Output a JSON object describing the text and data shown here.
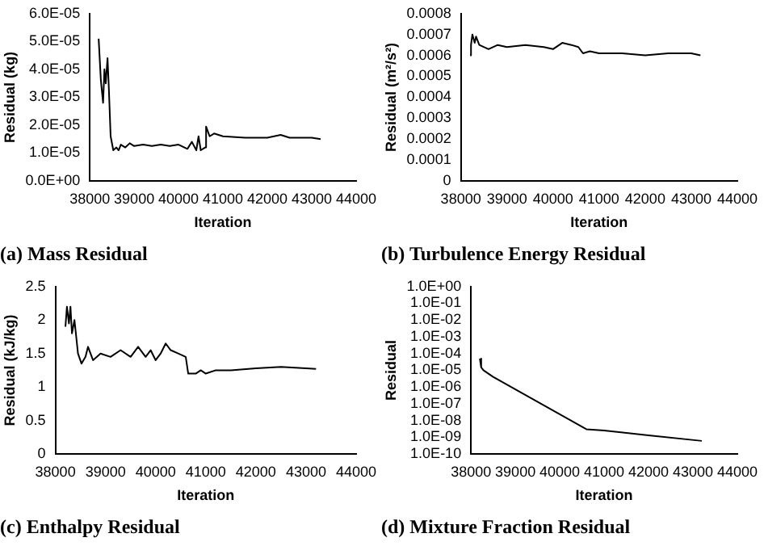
{
  "chart_data": [
    {
      "type": "line",
      "title": "(a) Mass Residual",
      "xlabel": "Iteration",
      "ylabel": "Residual (kg)",
      "xlim": [
        38000,
        44000
      ],
      "xticks": [
        38000,
        39000,
        40000,
        41000,
        42000,
        43000,
        44000
      ],
      "ylim": [
        0,
        6e-05
      ],
      "yticks": [
        {
          "value": 0,
          "label": "0.0E+00"
        },
        {
          "value": 1e-05,
          "label": "1.0E-05"
        },
        {
          "value": 2e-05,
          "label": "2.0E-05"
        },
        {
          "value": 3e-05,
          "label": "3.0E-05"
        },
        {
          "value": 4e-05,
          "label": "4.0E-05"
        },
        {
          "value": 5e-05,
          "label": "5.0E-05"
        },
        {
          "value": 6e-05,
          "label": "6.0E-05"
        }
      ],
      "series": [
        {
          "color": "#000000",
          "x": [
            38200,
            38250,
            38300,
            38330,
            38360,
            38400,
            38430,
            38470,
            38530,
            38600,
            38650,
            38700,
            38800,
            38900,
            39000,
            39200,
            39400,
            39600,
            39800,
            40000,
            40200,
            40300,
            40400,
            40450,
            40500,
            40600,
            40620,
            40700,
            40800,
            41000,
            41500,
            42000,
            42300,
            42500,
            43000,
            43200
          ],
          "values": [
            5.1e-05,
            3.6e-05,
            2.8e-05,
            4e-05,
            3.5e-05,
            4.4e-05,
            3.3e-05,
            1.6e-05,
            1.1e-05,
            1.2e-05,
            1.1e-05,
            1.3e-05,
            1.2e-05,
            1.35e-05,
            1.25e-05,
            1.3e-05,
            1.25e-05,
            1.3e-05,
            1.25e-05,
            1.3e-05,
            1.15e-05,
            1.4e-05,
            1.1e-05,
            1.6e-05,
            1.1e-05,
            1.2e-05,
            1.95e-05,
            1.6e-05,
            1.7e-05,
            1.6e-05,
            1.55e-05,
            1.55e-05,
            1.65e-05,
            1.55e-05,
            1.55e-05,
            1.5e-05
          ]
        }
      ]
    },
    {
      "type": "line",
      "title": "(b) Turbulence Energy Residual",
      "xlabel": "Iteration",
      "ylabel": "Residual (m²/s²)",
      "xlim": [
        38000,
        44000
      ],
      "xticks": [
        38000,
        39000,
        40000,
        41000,
        42000,
        43000,
        44000
      ],
      "ylim": [
        0,
        0.0008
      ],
      "yticks": [
        0,
        0.0001,
        0.0002,
        0.0003,
        0.0004,
        0.0005,
        0.0006,
        0.0007,
        0.0008
      ],
      "series": [
        {
          "color": "#000000",
          "x": [
            38200,
            38220,
            38250,
            38300,
            38330,
            38400,
            38600,
            38800,
            39000,
            39400,
            39800,
            40000,
            40200,
            40400,
            40550,
            40650,
            40800,
            41000,
            41500,
            42000,
            42500,
            43000,
            43200
          ],
          "values": [
            0.0006,
            0.00065,
            0.0007,
            0.00066,
            0.00069,
            0.00065,
            0.00063,
            0.00065,
            0.00064,
            0.00065,
            0.00064,
            0.00063,
            0.00066,
            0.00065,
            0.00064,
            0.00061,
            0.00062,
            0.00061,
            0.00061,
            0.0006,
            0.00061,
            0.00061,
            0.0006
          ]
        }
      ]
    },
    {
      "type": "line",
      "title": "(c) Enthalpy Residual",
      "xlabel": "Iteration",
      "ylabel": "Residual (kJ/kg)",
      "xlim": [
        38000,
        44000
      ],
      "xticks": [
        38000,
        39000,
        40000,
        41000,
        42000,
        43000,
        44000
      ],
      "ylim": [
        0,
        2.5
      ],
      "yticks": [
        0,
        0.5,
        1,
        1.5,
        2,
        2.5
      ],
      "series": [
        {
          "color": "#000000",
          "x": [
            38200,
            38230,
            38270,
            38300,
            38330,
            38380,
            38450,
            38520,
            38600,
            38650,
            38750,
            38900,
            39100,
            39300,
            39500,
            39650,
            39800,
            39900,
            40000,
            40100,
            40200,
            40300,
            40450,
            40600,
            40650,
            40800,
            40900,
            41000,
            41200,
            41500,
            42000,
            42500,
            43000,
            43200
          ],
          "values": [
            1.9,
            2.2,
            1.95,
            2.2,
            1.8,
            2.0,
            1.5,
            1.35,
            1.45,
            1.6,
            1.4,
            1.5,
            1.45,
            1.55,
            1.45,
            1.6,
            1.45,
            1.55,
            1.4,
            1.5,
            1.65,
            1.55,
            1.5,
            1.45,
            1.2,
            1.2,
            1.25,
            1.2,
            1.25,
            1.25,
            1.28,
            1.3,
            1.28,
            1.27
          ]
        }
      ]
    },
    {
      "type": "line",
      "title": "(d) Mixture Fraction Residual",
      "xlabel": "Iteration",
      "ylabel": "Residual",
      "log": "y",
      "xlim": [
        38000,
        44000
      ],
      "xticks": [
        38000,
        39000,
        40000,
        41000,
        42000,
        43000,
        44000
      ],
      "ylim": [
        1e-10,
        1
      ],
      "yticks": [
        {
          "value": 1e-10,
          "label": "1.0E-10"
        },
        {
          "value": 1e-09,
          "label": "1.0E-09"
        },
        {
          "value": 1e-08,
          "label": "1.0E-08"
        },
        {
          "value": 1e-07,
          "label": "1.0E-07"
        },
        {
          "value": 1e-06,
          "label": "1.0E-06"
        },
        {
          "value": 1e-05,
          "label": "1.0E-05"
        },
        {
          "value": 0.0001,
          "label": "1.0E-04"
        },
        {
          "value": 0.001,
          "label": "1.0E-03"
        },
        {
          "value": 0.01,
          "label": "1.0E-02"
        },
        {
          "value": 0.1,
          "label": "1.0E-01"
        },
        {
          "value": 1,
          "label": "1.0E+00"
        }
      ],
      "series": [
        {
          "color": "#000000",
          "x": [
            38200,
            38230,
            38280,
            38500,
            40600,
            41000,
            42000,
            43200
          ],
          "values": [
            5e-05,
            1.5e-05,
            1e-05,
            4e-06,
            3e-09,
            2.5e-09,
            1.3e-09,
            6e-10
          ]
        }
      ]
    }
  ]
}
